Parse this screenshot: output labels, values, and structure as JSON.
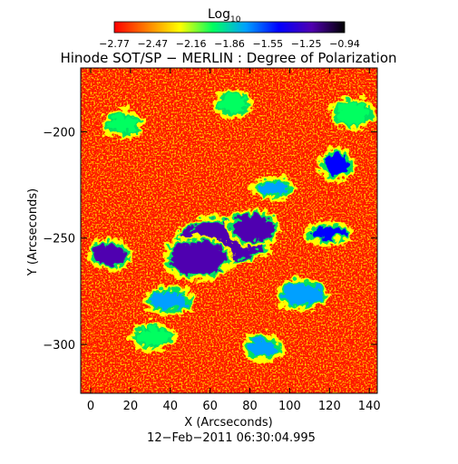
{
  "chart_data": {
    "type": "heatmap",
    "title": "Hinode SOT/SP − MERLIN : Degree of Polarization",
    "xlabel": "X (Arcseconds)",
    "ylabel": "Y (Arcseconds)",
    "date": "12−Feb−2011 06:30:04.995",
    "colorbar": {
      "label_main": "Log",
      "label_sub": "10",
      "min": -2.77,
      "max": -0.94,
      "ticks": [
        "−2.77",
        "−2.47",
        "−2.16",
        "−1.86",
        "−1.55",
        "−1.25",
        "−0.94"
      ],
      "colors": [
        "#ff0000",
        "#ff8000",
        "#ffff00",
        "#00ff60",
        "#00a0ff",
        "#0000ff",
        "#5000b0",
        "#000000"
      ]
    },
    "xlim": [
      -5,
      144
    ],
    "ylim": [
      -323,
      -170
    ],
    "x_ticks": [
      0,
      20,
      40,
      60,
      80,
      100,
      120,
      140
    ],
    "x_tick_labels": [
      "0",
      "20",
      "40",
      "60",
      "80",
      "100",
      "120",
      "140"
    ],
    "y_ticks": [
      -200,
      -250,
      -300
    ],
    "y_tick_labels": [
      "−200",
      "−250",
      "−300"
    ],
    "regions": [
      {
        "x": 65,
        "y": -250,
        "rx": 22,
        "ry": 9,
        "level": -1.15
      },
      {
        "x": 52,
        "y": -258,
        "rx": 14,
        "ry": 8,
        "level": -1.25
      },
      {
        "x": 80,
        "y": -244,
        "rx": 10,
        "ry": 6,
        "level": -1.2
      },
      {
        "x": 8,
        "y": -256,
        "rx": 8,
        "ry": 5,
        "level": -1.2
      },
      {
        "x": 118,
        "y": -246,
        "rx": 9,
        "ry": 3,
        "level": -1.55
      },
      {
        "x": 122,
        "y": -214,
        "rx": 6,
        "ry": 5,
        "level": -1.45
      },
      {
        "x": 38,
        "y": -278,
        "rx": 10,
        "ry": 4,
        "level": -1.7
      },
      {
        "x": 105,
        "y": -275,
        "rx": 10,
        "ry": 5,
        "level": -1.8
      },
      {
        "x": 90,
        "y": -225,
        "rx": 8,
        "ry": 3,
        "level": -1.8
      },
      {
        "x": 30,
        "y": -295,
        "rx": 8,
        "ry": 4,
        "level": -1.9
      },
      {
        "x": 85,
        "y": -300,
        "rx": 7,
        "ry": 4,
        "level": -1.75
      },
      {
        "x": 130,
        "y": -190,
        "rx": 8,
        "ry": 5,
        "level": -1.9
      },
      {
        "x": 15,
        "y": -195,
        "rx": 7,
        "ry": 4,
        "level": -2.0
      },
      {
        "x": 70,
        "y": -185,
        "rx": 6,
        "ry": 4,
        "level": -2.0
      }
    ]
  }
}
